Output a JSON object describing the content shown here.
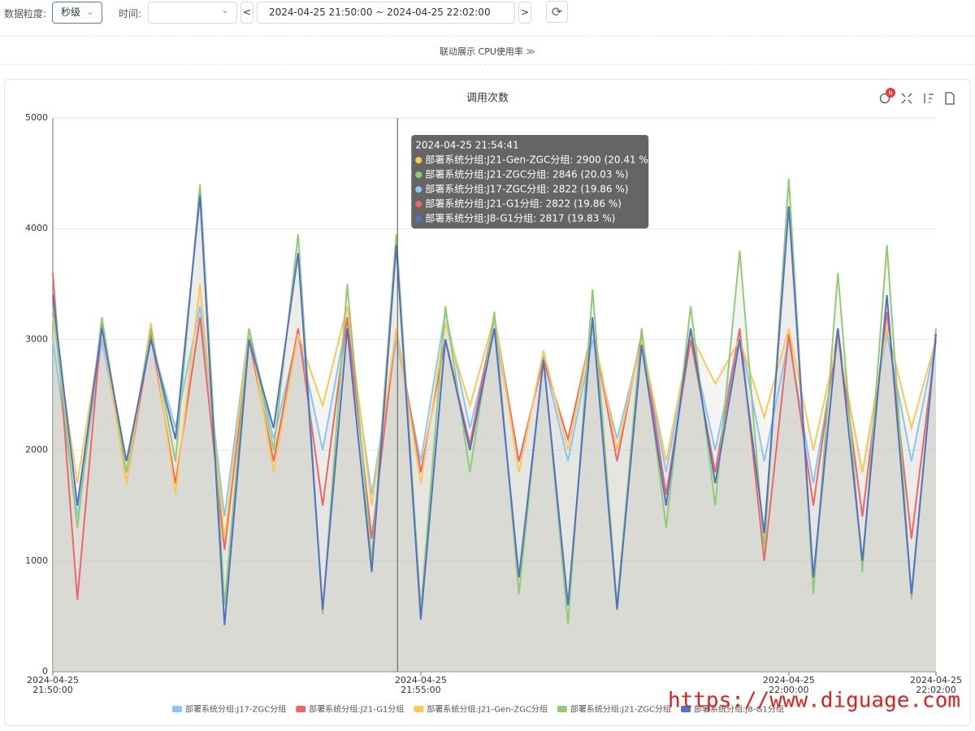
{
  "toolbar": {
    "granularity_label": "数据粒度:",
    "granularity": "秒级",
    "time_label": "时间:",
    "range": "2024-04-25 21:50:00 ~ 2024-04-25 22:02:00",
    "link_text": "联动展示 CPU使用率"
  },
  "badge": "N",
  "watermark": "https://www.diguage.com",
  "chart_data": {
    "type": "line",
    "title": "调用次数",
    "area": true,
    "area_color": "#c9c9bf",
    "grid": true,
    "ylim": [
      0,
      5000
    ],
    "yticks": [
      0,
      1000,
      2000,
      3000,
      4000,
      5000
    ],
    "xlim": [
      "2024-04-25 21:50:00",
      "2024-04-25 22:02:00"
    ],
    "xticks": [
      {
        "value": "2024-04-25 21:50:00",
        "label": [
          "2024-04-25",
          "21:50:00"
        ]
      },
      {
        "value": "2024-04-25 21:55:00",
        "label": [
          "2024-04-25",
          "21:55:00"
        ]
      },
      {
        "value": "2024-04-25 22:00:00",
        "label": [
          "2024-04-25",
          "22:00:00"
        ]
      },
      {
        "value": "2024-04-25 22:02:00",
        "label": [
          "2024-04-25",
          "22:02:00"
        ]
      }
    ],
    "x": [
      "2024-04-25 21:50:00",
      "2024-04-25 21:50:20",
      "2024-04-25 21:50:40",
      "2024-04-25 21:51:00",
      "2024-04-25 21:51:20",
      "2024-04-25 21:51:40",
      "2024-04-25 21:52:00",
      "2024-04-25 21:52:20",
      "2024-04-25 21:52:40",
      "2024-04-25 21:53:00",
      "2024-04-25 21:53:20",
      "2024-04-25 21:53:40",
      "2024-04-25 21:54:00",
      "2024-04-25 21:54:20",
      "2024-04-25 21:54:40",
      "2024-04-25 21:55:00",
      "2024-04-25 21:55:20",
      "2024-04-25 21:55:40",
      "2024-04-25 21:56:00",
      "2024-04-25 21:56:20",
      "2024-04-25 21:56:40",
      "2024-04-25 21:57:00",
      "2024-04-25 21:57:20",
      "2024-04-25 21:57:40",
      "2024-04-25 21:58:00",
      "2024-04-25 21:58:20",
      "2024-04-25 21:58:40",
      "2024-04-25 21:59:00",
      "2024-04-25 21:59:20",
      "2024-04-25 21:59:40",
      "2024-04-25 22:00:00",
      "2024-04-25 22:00:20",
      "2024-04-25 22:00:40",
      "2024-04-25 22:01:00",
      "2024-04-25 22:01:20",
      "2024-04-25 22:01:40",
      "2024-04-25 22:02:00"
    ],
    "series": [
      {
        "name": "部署系统分组:J17-ZGC分组",
        "color": "#8ac6f2",
        "values": [
          3000,
          1400,
          3000,
          1800,
          3000,
          2200,
          3300,
          1400,
          3100,
          2100,
          3050,
          2000,
          3200,
          1600,
          3000,
          1900,
          3250,
          2200,
          3100,
          1900,
          2822,
          1900,
          3000,
          2100,
          3000,
          1800,
          3000,
          2000,
          3050,
          1900,
          3000,
          1700,
          3000,
          1800,
          3050,
          1900,
          3000
        ]
      },
      {
        "name": "部署系统分组:J21-G1分组",
        "color": "#ee6666",
        "values": [
          3600,
          650,
          3150,
          1700,
          3050,
          1700,
          3200,
          1100,
          3000,
          1900,
          3100,
          1500,
          3200,
          1200,
          3100,
          1800,
          3000,
          2050,
          3200,
          1900,
          2822,
          2100,
          3100,
          1900,
          3050,
          1600,
          3000,
          1800,
          3100,
          1000,
          3050,
          1500,
          3100,
          1400,
          3250,
          1200,
          3000
        ]
      },
      {
        "name": "部署系统分组:J21-Gen-ZGC分组",
        "color": "#fac858",
        "values": [
          3200,
          1700,
          3100,
          1700,
          3150,
          1600,
          3500,
          1200,
          3100,
          1800,
          3050,
          2400,
          3300,
          1500,
          3100,
          1700,
          3150,
          2400,
          3200,
          1800,
          2900,
          2000,
          3100,
          2000,
          3000,
          1900,
          3050,
          2600,
          3000,
          2300,
          3100,
          2000,
          3000,
          1800,
          3100,
          2200,
          3000
        ]
      },
      {
        "name": "部署系统分组:J21-ZGC分组",
        "color": "#91cc75",
        "values": [
          3300,
          1300,
          3200,
          1800,
          3100,
          1900,
          4400,
          600,
          3100,
          2000,
          3950,
          520,
          3500,
          1000,
          3950,
          560,
          3300,
          1800,
          3250,
          700,
          2846,
          430,
          3450,
          600,
          3100,
          1300,
          3300,
          1500,
          3800,
          1100,
          4450,
          700,
          3600,
          900,
          3850,
          650,
          3100
        ]
      },
      {
        "name": "部署系统分组:J8-G1分组",
        "color": "#5470c6",
        "values": [
          3400,
          1500,
          3100,
          1900,
          3000,
          2100,
          4300,
          420,
          3000,
          2200,
          3780,
          560,
          3100,
          900,
          3850,
          470,
          3000,
          2000,
          3100,
          850,
          2817,
          600,
          3200,
          560,
          2950,
          1500,
          3100,
          1700,
          3000,
          1250,
          4200,
          850,
          3100,
          1000,
          3400,
          700,
          3050
        ]
      }
    ],
    "tooltip": {
      "x": "2024-04-25 21:54:41",
      "items": [
        {
          "color": "#fac858",
          "text": "部署系统分组:J21-Gen-ZGC分组: 2900 (20.41 %)"
        },
        {
          "color": "#91cc75",
          "text": "部署系统分组:J21-ZGC分组: 2846 (20.03 %)"
        },
        {
          "color": "#8ac6f2",
          "text": "部署系统分组:J17-ZGC分组: 2822 (19.86 %)"
        },
        {
          "color": "#ee6666",
          "text": "部署系统分组:J21-G1分组: 2822 (19.86 %)"
        },
        {
          "color": "#5470c6",
          "text": "部署系统分组:J8-G1分组: 2817 (19.83 %)"
        }
      ]
    }
  }
}
